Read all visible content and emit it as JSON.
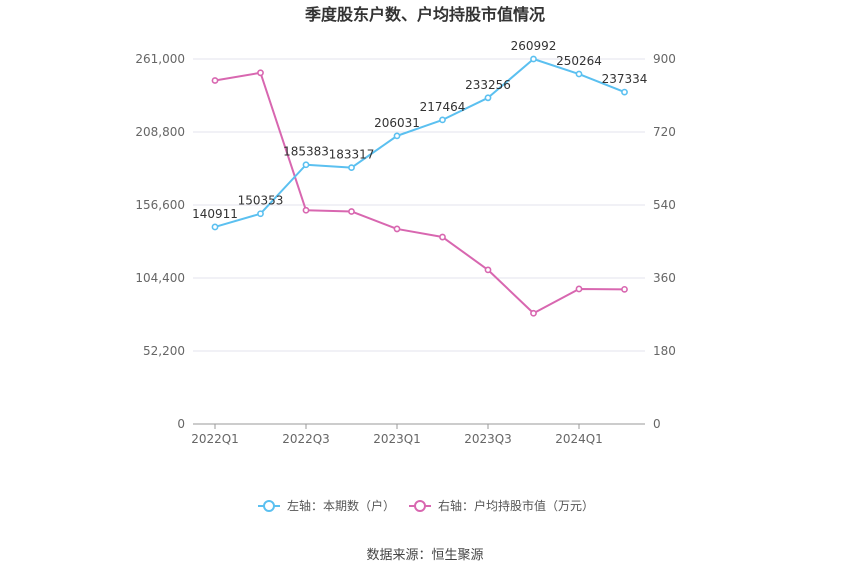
{
  "chart_data": {
    "type": "line",
    "title": "季度股东户数、户均持股市值情况",
    "categories": [
      "2022Q1",
      "2022Q2",
      "2022Q3",
      "2022Q4",
      "2023Q1",
      "2023Q2",
      "2023Q3",
      "2023Q4",
      "2024Q1",
      "2024Q2"
    ],
    "x_tick_labels": [
      "2022Q1",
      "2022Q3",
      "2023Q1",
      "2023Q3",
      "2024Q1"
    ],
    "y_left": {
      "ticks": [
        "0",
        "52,200",
        "104,400",
        "156,600",
        "208,800",
        "261,000"
      ],
      "range": [
        0,
        261000
      ]
    },
    "y_right": {
      "ticks": [
        "0",
        "180",
        "360",
        "540",
        "720",
        "900"
      ],
      "range": [
        0,
        900
      ]
    },
    "series": [
      {
        "name": "左轴：本期数（户）",
        "axis": "left",
        "color": "#5bc0f0",
        "values": [
          140911,
          150353,
          185383,
          183317,
          206031,
          217464,
          233256,
          260992,
          250264,
          237334
        ],
        "labels": [
          "140911",
          "150353",
          "185383",
          "183317",
          "206031",
          "217464",
          "233256",
          "260992",
          "250264",
          "237334"
        ]
      },
      {
        "name": "右轴：户均持股市值（万元）",
        "axis": "right",
        "color": "#d867b0",
        "values": [
          847,
          866,
          527,
          524,
          481,
          461,
          380,
          273,
          333,
          332
        ]
      }
    ],
    "grid": true,
    "legend_position": "bottom"
  },
  "source_text": "数据来源：恒生聚源"
}
